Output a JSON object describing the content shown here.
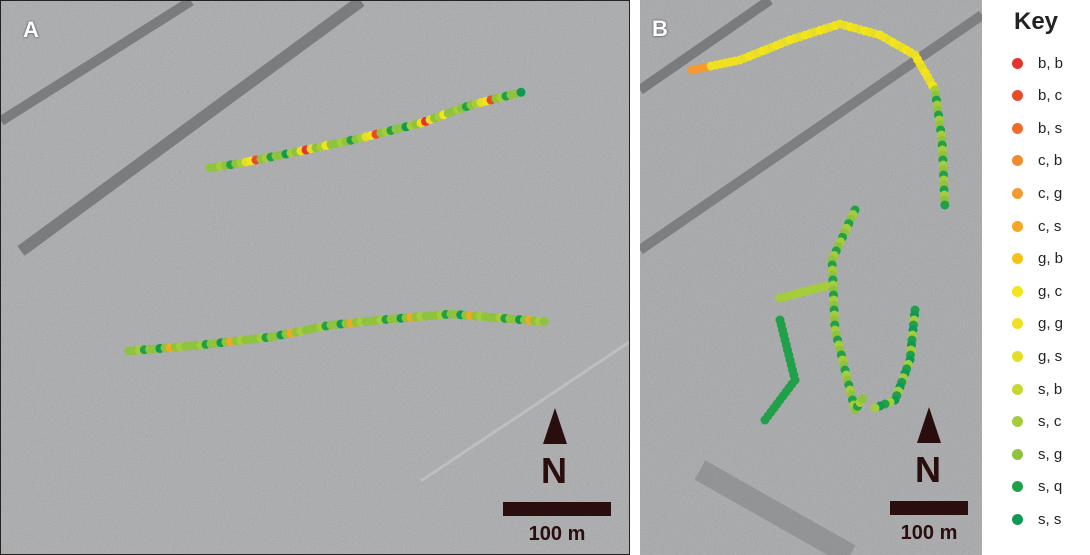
{
  "panels": [
    {
      "id": "A",
      "label": "A",
      "north_label": "N",
      "scale_label": "100 m"
    },
    {
      "id": "B",
      "label": "B",
      "north_label": "N",
      "scale_label": "100 m"
    }
  ],
  "key": {
    "title": "Key",
    "items": [
      {
        "label": "b, b",
        "color": "#e8322e"
      },
      {
        "label": "b, c",
        "color": "#e84a2a"
      },
      {
        "label": "b, s",
        "color": "#ee6d2c"
      },
      {
        "label": "c, b",
        "color": "#f08a2f"
      },
      {
        "label": "c, g",
        "color": "#f39a32"
      },
      {
        "label": "c, s",
        "color": "#f5a623"
      },
      {
        "label": "g, b",
        "color": "#f4c21b"
      },
      {
        "label": "g, c",
        "color": "#f4e41a"
      },
      {
        "label": "g, g",
        "color": "#f0e020"
      },
      {
        "label": "g, s",
        "color": "#e4de2a"
      },
      {
        "label": "s, b",
        "color": "#c8d630"
      },
      {
        "label": "s, c",
        "color": "#a5cc3b"
      },
      {
        "label": "s, g",
        "color": "#8fc23e"
      },
      {
        "label": "s, q",
        "color": "#21a04a"
      },
      {
        "label": "s, s",
        "color": "#0e9a52"
      }
    ]
  }
}
